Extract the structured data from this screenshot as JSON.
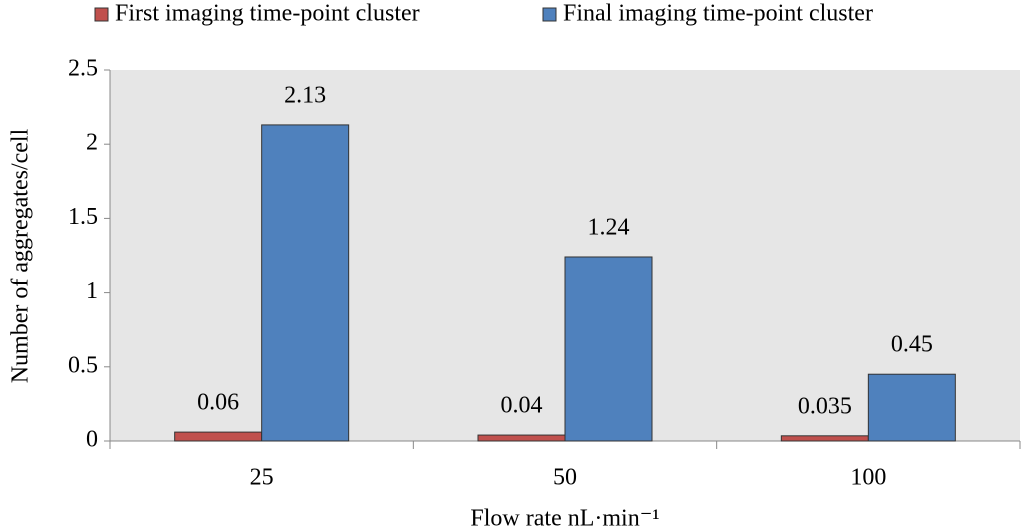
{
  "chart_data": {
    "type": "bar",
    "x_label": "Flow rate nL·min⁻¹",
    "y_label": "Number of aggregates/cell",
    "categories": [
      "25",
      "50",
      "100"
    ],
    "series": [
      {
        "name": "First imaging time-point cluster",
        "color": "#c0504d",
        "values": [
          0.06,
          0.04,
          0.035
        ]
      },
      {
        "name": "Final imaging time-point cluster",
        "color": "#4f81bd",
        "values": [
          2.13,
          1.24,
          0.45
        ]
      }
    ],
    "ylim": [
      0,
      2.5
    ],
    "yticks": [
      0,
      0.5,
      1,
      1.5,
      2,
      2.5
    ],
    "legend": "top",
    "plot_background": "#e6e6e6"
  }
}
